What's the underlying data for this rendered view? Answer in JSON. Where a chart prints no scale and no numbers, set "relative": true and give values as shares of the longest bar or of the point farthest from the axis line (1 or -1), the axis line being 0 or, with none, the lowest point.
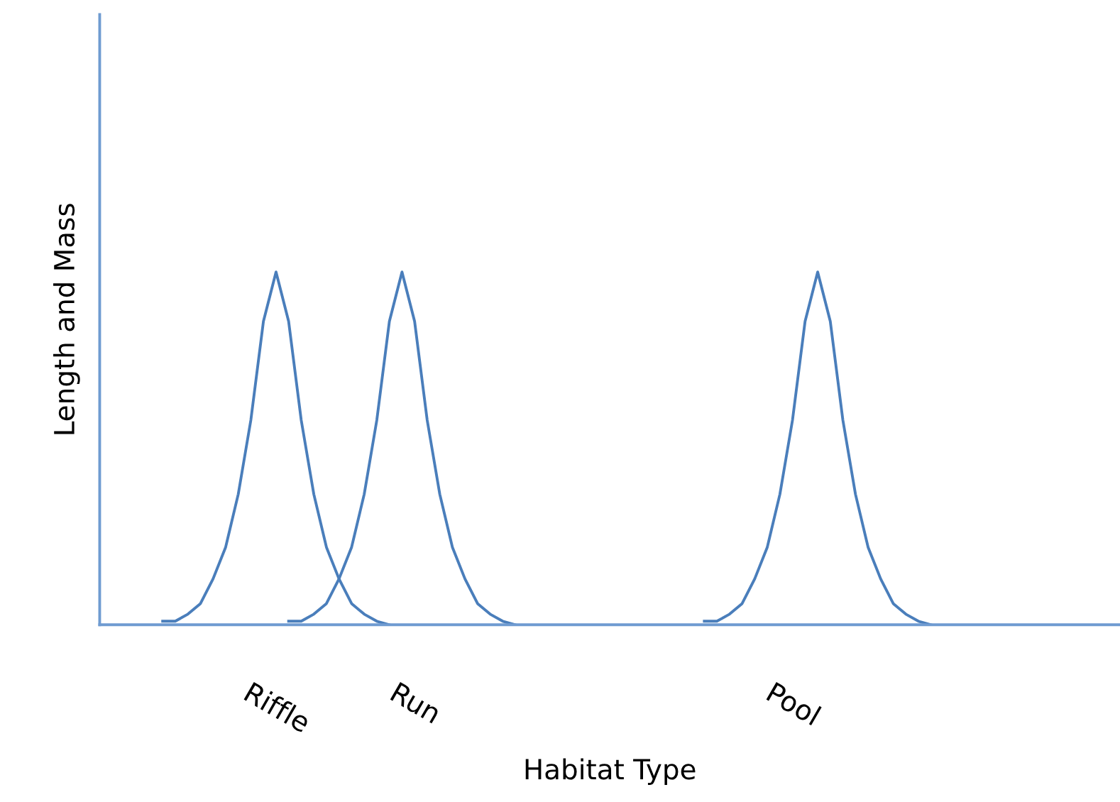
{
  "chart_data": {
    "type": "line",
    "relative": true,
    "xlabel": "Habitat Type",
    "ylabel": "Length and Mass",
    "categories": [
      null,
      null,
      null,
      null,
      null,
      null,
      null,
      null,
      null,
      null,
      null,
      null,
      null,
      null,
      "Riffle",
      null,
      null,
      null,
      null,
      null,
      null,
      null,
      null,
      null,
      null,
      "Run",
      null,
      null,
      null,
      null,
      null,
      null,
      null,
      null,
      null,
      null,
      null,
      null,
      null,
      null,
      null,
      null,
      null,
      null,
      null,
      null,
      null,
      null,
      null,
      null,
      null,
      null,
      null,
      null,
      null,
      "Pool",
      null,
      null,
      null,
      null,
      null,
      null,
      null,
      null,
      null,
      null,
      null,
      null,
      null,
      null,
      null,
      null,
      null,
      null,
      null,
      null,
      null,
      null,
      null,
      null,
      null,
      null
    ],
    "grid": false,
    "legend": false,
    "marker": "none",
    "line_style": "solid",
    "series": [
      {
        "color": "#4a7ebb",
        "values": [
          null,
          null,
          null,
          null,
          null,
          0.01,
          0.01,
          0.03,
          0.06,
          0.13,
          0.22,
          0.37,
          0.58,
          0.86,
          1,
          0.86,
          0.58,
          0.37,
          0.22,
          0.13,
          0.06,
          0.03,
          0.01,
          0,
          null,
          null,
          null,
          null,
          null,
          null,
          null,
          null,
          null,
          null,
          null,
          null,
          null,
          null,
          null,
          null,
          null,
          null,
          null,
          null,
          null,
          null,
          null,
          null,
          null,
          null,
          null,
          null,
          null,
          null,
          null,
          null,
          null,
          null,
          null,
          null,
          null,
          null,
          null,
          null,
          null,
          null,
          null,
          null,
          null,
          null,
          null,
          null,
          null,
          null,
          null,
          null,
          null,
          null,
          null,
          null,
          null,
          null
        ]
      },
      {
        "color": "#4a7ebb",
        "values": [
          null,
          null,
          null,
          null,
          null,
          null,
          null,
          null,
          null,
          null,
          null,
          null,
          null,
          null,
          null,
          0.01,
          0.01,
          0.03,
          0.06,
          0.13,
          0.22,
          0.37,
          0.58,
          0.86,
          1,
          0.86,
          0.58,
          0.37,
          0.22,
          0.13,
          0.06,
          0.03,
          0.01,
          0,
          null,
          null,
          null,
          null,
          null,
          null,
          null,
          null,
          null,
          null,
          null,
          null,
          null,
          null,
          null,
          null,
          null,
          null,
          null,
          null,
          null,
          null,
          null,
          null,
          null,
          null,
          null,
          null,
          null,
          null,
          null,
          null,
          null,
          null,
          null,
          null,
          null,
          null,
          null,
          null,
          null,
          null,
          null,
          null,
          null,
          null,
          null,
          null
        ]
      },
      {
        "color": "#4a7ebb",
        "values": [
          null,
          null,
          null,
          null,
          null,
          null,
          null,
          null,
          null,
          null,
          null,
          null,
          null,
          null,
          null,
          null,
          null,
          null,
          null,
          null,
          null,
          null,
          null,
          null,
          null,
          null,
          null,
          null,
          null,
          null,
          null,
          null,
          null,
          null,
          null,
          null,
          null,
          null,
          null,
          null,
          null,
          null,
          null,
          null,
          null,
          null,
          null,
          null,
          0.01,
          0.01,
          0.03,
          0.06,
          0.13,
          0.22,
          0.37,
          0.58,
          0.86,
          1,
          0.86,
          0.58,
          0.37,
          0.22,
          0.13,
          0.06,
          0.03,
          0.01,
          0,
          null,
          null,
          null,
          null,
          null,
          null,
          null,
          null,
          null,
          null,
          null,
          null,
          null,
          null,
          null
        ]
      }
    ]
  }
}
